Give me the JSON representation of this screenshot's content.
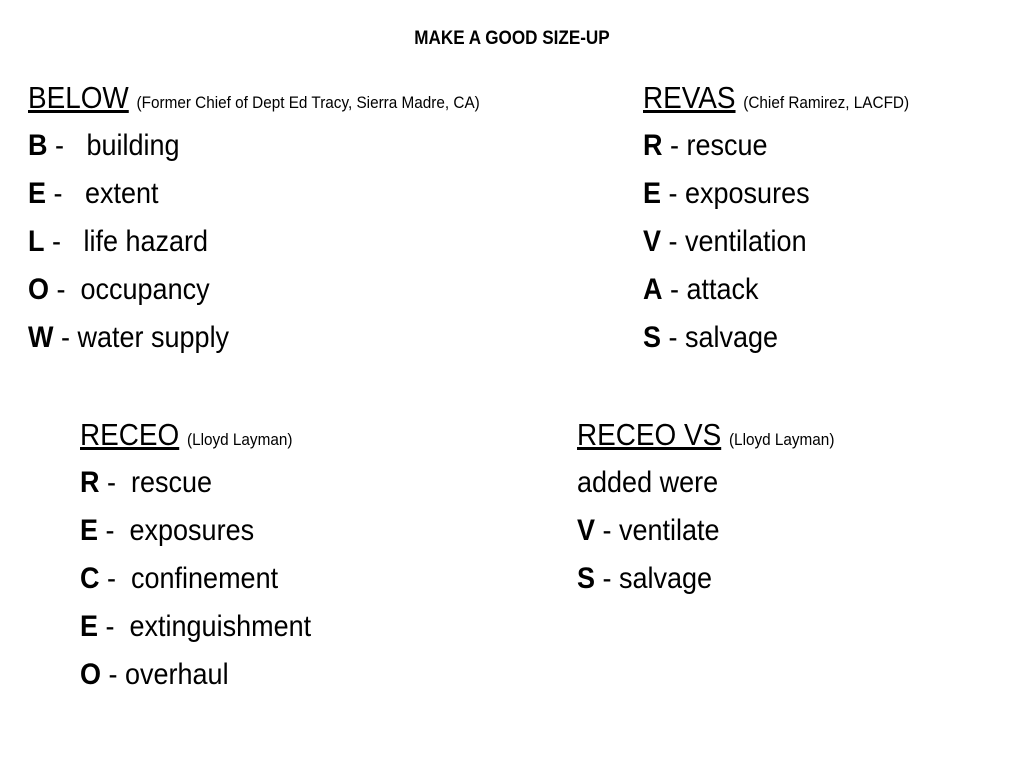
{
  "title": "MAKE A GOOD SIZE-UP",
  "below": {
    "name": "BELOW",
    "source": "(Former Chief of Dept Ed Tracy, Sierra Madre, CA)",
    "items": [
      {
        "letter": "B",
        "text": " -   building"
      },
      {
        "letter": "E",
        "text": " -   extent"
      },
      {
        "letter": "L",
        "text": " -   life hazard"
      },
      {
        "letter": "O",
        "text": " -  occupancy"
      },
      {
        "letter": "W",
        "text": " - water supply"
      }
    ]
  },
  "revas": {
    "name": "REVAS",
    "source": "(Chief Ramirez, LACFD)",
    "items": [
      {
        "letter": "R",
        "text": " - rescue"
      },
      {
        "letter": "E",
        "text": " - exposures"
      },
      {
        "letter": "V",
        "text": " - ventilation"
      },
      {
        "letter": "A",
        "text": " - attack"
      },
      {
        "letter": "S",
        "text": " - salvage"
      }
    ]
  },
  "receo": {
    "name": "RECEO",
    "source": "(Lloyd Layman)",
    "items": [
      {
        "letter": "R",
        "text": " -  rescue"
      },
      {
        "letter": "E",
        "text": " -  exposures"
      },
      {
        "letter": "C",
        "text": " -  confinement"
      },
      {
        "letter": "E",
        "text": " -  extinguishment"
      },
      {
        "letter": "O",
        "text": " - overhaul"
      }
    ]
  },
  "receovs": {
    "name": "RECEO VS",
    "source": "(Lloyd Layman)",
    "note": "added were",
    "items": [
      {
        "letter": "V",
        "text": " - ventilate"
      },
      {
        "letter": "S",
        "text": " - salvage"
      }
    ]
  }
}
